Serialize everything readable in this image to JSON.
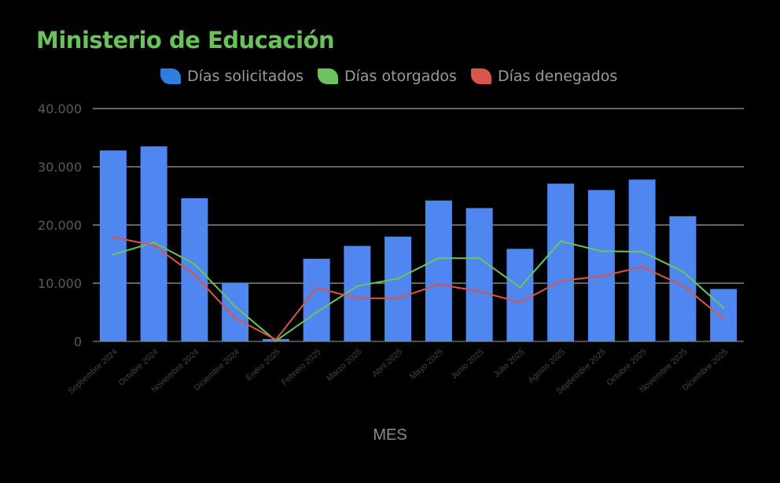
{
  "chart_data": {
    "type": "bar",
    "title": "Ministerio de Educación",
    "xlabel": "MES",
    "ylabel": "",
    "ylim": [
      0,
      40000
    ],
    "yticks": [
      0,
      10000,
      20000,
      30000,
      40000
    ],
    "ytick_labels": [
      "0",
      "10.000",
      "20.000",
      "30.000",
      "40.000"
    ],
    "grid": true,
    "legend_position": "top",
    "categories": [
      "Septiembre 2024",
      "Octubre 2024",
      "Noviembre 2024",
      "Diciembre 2024",
      "Enero 2025",
      "Febrero 2025",
      "Marzo 2025",
      "Abril 2025",
      "Mayo 2025",
      "Junio 2025",
      "Julio 2025",
      "Agosto 2025",
      "Septiembre 2025",
      "Octubre 2025",
      "Noviembre 2025",
      "Diciembre 2025"
    ],
    "series": [
      {
        "name": "Días solicitados",
        "type": "bar",
        "color": "#4f86f0",
        "values": [
          32800,
          33500,
          24600,
          10000,
          400,
          14200,
          16400,
          18000,
          24200,
          22900,
          15900,
          27100,
          26000,
          27800,
          21500,
          9000
        ]
      },
      {
        "name": "Días otorgados",
        "type": "line",
        "color": "#6cc35e",
        "values": [
          14900,
          17000,
          13300,
          6000,
          100,
          5000,
          9500,
          10800,
          14300,
          14300,
          9300,
          17200,
          15500,
          15400,
          12000,
          5800
        ]
      },
      {
        "name": "Días denegados",
        "type": "line",
        "color": "#d8564a",
        "values": [
          17900,
          16500,
          11400,
          4000,
          300,
          9200,
          7400,
          7400,
          9800,
          8600,
          6700,
          10400,
          11200,
          12800,
          9600,
          3900
        ]
      }
    ]
  }
}
